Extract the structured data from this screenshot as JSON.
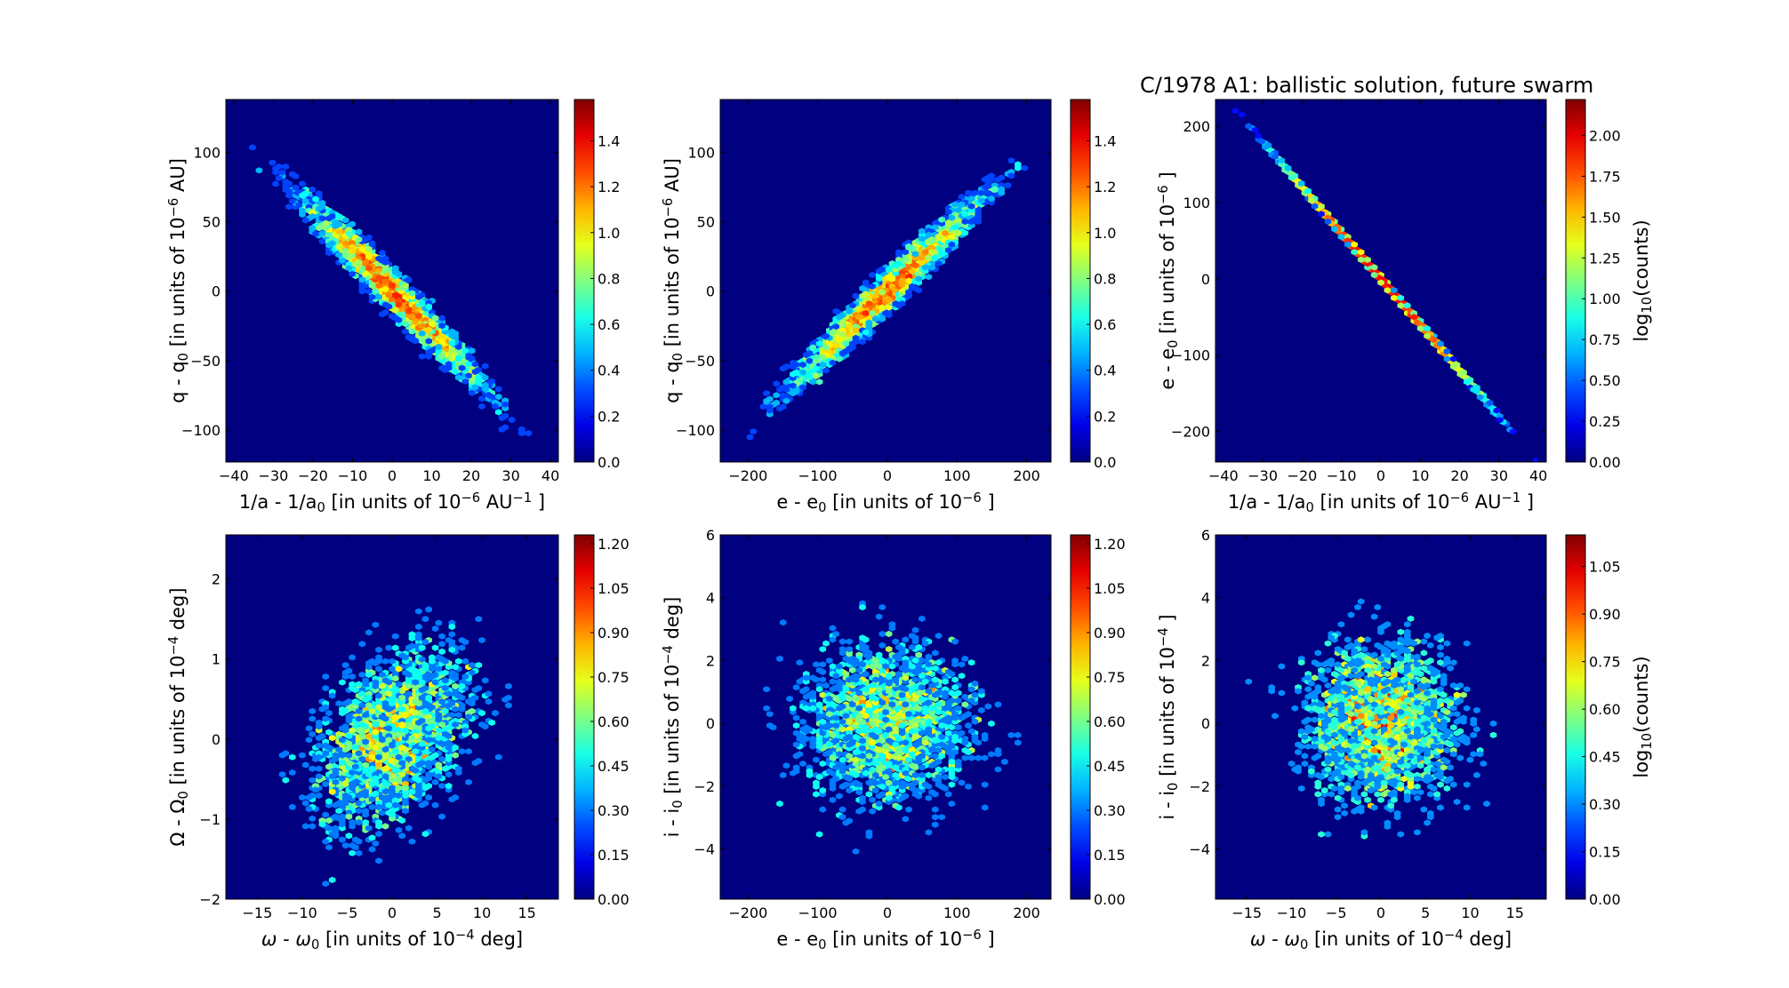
{
  "chart_data": {
    "title": "C/1978 A1:  ballistic solution, future swarm",
    "panels": [
      {
        "type": "heatmap",
        "kind": "hexbin",
        "n": 5000,
        "mean": [
          0,
          0
        ],
        "sx": 12,
        "sy": 36,
        "rho": -0.975,
        "xlim": [
          -42,
          42
        ],
        "ylim": [
          -123,
          138
        ],
        "xticks": [
          -40,
          -30,
          -20,
          -10,
          0,
          10,
          20,
          30,
          40
        ],
        "yticks": [
          -100,
          -50,
          0,
          50,
          100
        ],
        "xlabel": [
          {
            "t": "1/a - 1/a"
          },
          {
            "t": "0",
            "s": "sub"
          },
          {
            "t": " [in units of 10"
          },
          {
            "t": "−6",
            "s": "sup"
          },
          {
            "t": " AU"
          },
          {
            "t": "−1",
            "s": "sup"
          },
          {
            "t": " ]"
          }
        ],
        "ylabel": [
          {
            "t": "q - q"
          },
          {
            "t": "0",
            "s": "sub"
          },
          {
            "t": " [in units of 10"
          },
          {
            "t": "−6",
            "s": "sup"
          },
          {
            "t": " AU]"
          }
        ],
        "clim": [
          0,
          1.58
        ],
        "cticks": [
          "0.0",
          "0.2",
          "0.4",
          "0.6",
          "0.8",
          "1.0",
          "1.2",
          "1.4"
        ],
        "clabel": []
      },
      {
        "type": "heatmap",
        "kind": "hexbin",
        "n": 5000,
        "mean": [
          0,
          0
        ],
        "sx": 72,
        "sy": 36,
        "rho": 0.975,
        "xlim": [
          -240,
          235
        ],
        "ylim": [
          -123,
          138
        ],
        "xticks": [
          -200,
          -100,
          0,
          100,
          200
        ],
        "yticks": [
          -100,
          -50,
          0,
          50,
          100
        ],
        "xlabel": [
          {
            "t": "e - e"
          },
          {
            "t": "0",
            "s": "sub"
          },
          {
            "t": " [in units of 10"
          },
          {
            "t": "−6",
            "s": "sup"
          },
          {
            "t": " ]"
          }
        ],
        "ylabel": [
          {
            "t": "q - q"
          },
          {
            "t": "0",
            "s": "sub"
          },
          {
            "t": " [in units of 10"
          },
          {
            "t": "−6",
            "s": "sup"
          },
          {
            "t": " AU]"
          }
        ],
        "clim": [
          0,
          1.58
        ],
        "cticks": [
          "0.0",
          "0.2",
          "0.4",
          "0.6",
          "0.8",
          "1.0",
          "1.2",
          "1.4"
        ],
        "clabel": []
      },
      {
        "type": "heatmap",
        "kind": "hexbin",
        "n": 5000,
        "mean": [
          0,
          0
        ],
        "sx": 12,
        "sy": 72,
        "rho": -0.9999,
        "xlim": [
          -42,
          42
        ],
        "ylim": [
          -240,
          235
        ],
        "xticks": [
          -40,
          -30,
          -20,
          -10,
          0,
          10,
          20,
          30,
          40
        ],
        "yticks": [
          -200,
          -100,
          0,
          100,
          200
        ],
        "xlabel": [
          {
            "t": "1/a - 1/a"
          },
          {
            "t": "0",
            "s": "sub"
          },
          {
            "t": " [in units of 10"
          },
          {
            "t": "−6",
            "s": "sup"
          },
          {
            "t": " AU"
          },
          {
            "t": "−1",
            "s": "sup"
          },
          {
            "t": " ]"
          }
        ],
        "ylabel": [
          {
            "t": "e - e"
          },
          {
            "t": "0",
            "s": "sub"
          },
          {
            "t": " [in units of 10"
          },
          {
            "t": "−6",
            "s": "sup"
          },
          {
            "t": " ]"
          }
        ],
        "clim": [
          0,
          2.22
        ],
        "cticks": [
          "0.00",
          "0.25",
          "0.50",
          "0.75",
          "1.00",
          "1.25",
          "1.50",
          "1.75",
          "2.00"
        ],
        "clabel": [
          {
            "t": "log"
          },
          {
            "t": "10",
            "s": "sub"
          },
          {
            "t": "(counts)"
          }
        ]
      },
      {
        "type": "heatmap",
        "kind": "hexbin",
        "n": 5000,
        "mean": [
          0,
          0
        ],
        "sx": 5,
        "sy": 0.65,
        "rho": 0.4,
        "xlim": [
          -18.5,
          18.5
        ],
        "ylim": [
          -2,
          2.55
        ],
        "xticks": [
          -15,
          -10,
          -5,
          0,
          5,
          10,
          15
        ],
        "yticks": [
          -2,
          -1,
          0,
          1,
          2
        ],
        "xlabel": [
          {
            "t": "ω",
            "i": true
          },
          {
            "t": " - "
          },
          {
            "t": "ω",
            "i": true
          },
          {
            "t": "0",
            "s": "sub"
          },
          {
            "t": " [in units of 10"
          },
          {
            "t": "−4",
            "s": "sup"
          },
          {
            "t": " deg]"
          }
        ],
        "ylabel": [
          {
            "t": "Ω - Ω"
          },
          {
            "t": "0",
            "s": "sub"
          },
          {
            "t": " [in units of 10"
          },
          {
            "t": "−4",
            "s": "sup"
          },
          {
            "t": " deg]"
          }
        ],
        "clim": [
          0,
          1.23
        ],
        "cticks": [
          "0.00",
          "0.15",
          "0.30",
          "0.45",
          "0.60",
          "0.75",
          "0.90",
          "1.05",
          "1.20"
        ],
        "clabel": []
      },
      {
        "type": "heatmap",
        "kind": "hexbin",
        "n": 5000,
        "mean": [
          0,
          0
        ],
        "sx": 72,
        "sy": 1.5,
        "rho": 0.0,
        "xlim": [
          -240,
          235
        ],
        "ylim": [
          -5.6,
          6
        ],
        "xticks": [
          -200,
          -100,
          0,
          100,
          200
        ],
        "yticks": [
          -4,
          -2,
          0,
          2,
          4,
          6
        ],
        "xlabel": [
          {
            "t": "e - e"
          },
          {
            "t": "0",
            "s": "sub"
          },
          {
            "t": " [in units of 10"
          },
          {
            "t": "−6",
            "s": "sup"
          },
          {
            "t": " ]"
          }
        ],
        "ylabel": [
          {
            "t": "i - i"
          },
          {
            "t": "0",
            "s": "sub"
          },
          {
            "t": " [in units of 10"
          },
          {
            "t": "−4",
            "s": "sup"
          },
          {
            "t": " deg]"
          }
        ],
        "clim": [
          0,
          1.23
        ],
        "cticks": [
          "0.00",
          "0.15",
          "0.30",
          "0.45",
          "0.60",
          "0.75",
          "0.90",
          "1.05",
          "1.20"
        ],
        "clabel": []
      },
      {
        "type": "heatmap",
        "kind": "hexbin",
        "n": 5000,
        "mean": [
          0,
          0
        ],
        "sx": 5,
        "sy": 1.5,
        "rho": 0.0,
        "xlim": [
          -18.5,
          18.5
        ],
        "ylim": [
          -5.6,
          6
        ],
        "xticks": [
          -15,
          -10,
          -5,
          0,
          5,
          10,
          15
        ],
        "yticks": [
          -4,
          -2,
          0,
          2,
          4,
          6
        ],
        "xlabel": [
          {
            "t": "ω",
            "i": true
          },
          {
            "t": " - "
          },
          {
            "t": "ω",
            "i": true
          },
          {
            "t": "0",
            "s": "sub"
          },
          {
            "t": " [in units of 10"
          },
          {
            "t": "−4",
            "s": "sup"
          },
          {
            "t": " deg]"
          }
        ],
        "ylabel": [
          {
            "t": "i - i"
          },
          {
            "t": "0",
            "s": "sub"
          },
          {
            "t": " [in units of 10"
          },
          {
            "t": "−4",
            "s": "sup"
          },
          {
            "t": " ]"
          }
        ],
        "clim": [
          0,
          1.15
        ],
        "cticks": [
          "0.00",
          "0.15",
          "0.30",
          "0.45",
          "0.60",
          "0.75",
          "0.90",
          "1.05"
        ],
        "clabel": [
          {
            "t": "log"
          },
          {
            "t": "10",
            "s": "sub"
          },
          {
            "t": "(counts)"
          }
        ]
      }
    ]
  }
}
